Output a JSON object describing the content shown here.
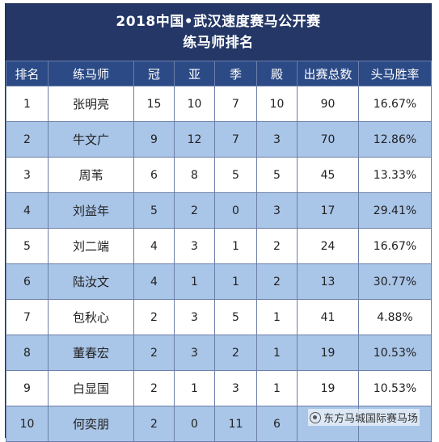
{
  "title": {
    "line1": "2018中国•武汉速度赛马公开赛",
    "line2": "练马师排名"
  },
  "columns": [
    "排名",
    "练马师",
    "冠",
    "亚",
    "季",
    "殿",
    "出赛总数",
    "头马胜率"
  ],
  "rows": [
    {
      "rank": "1",
      "trainer": "张明亮",
      "first": "15",
      "second": "10",
      "third": "7",
      "fourth": "10",
      "starts": "90",
      "win_rate": "16.67%"
    },
    {
      "rank": "2",
      "trainer": "牛文广",
      "first": "9",
      "second": "12",
      "third": "7",
      "fourth": "3",
      "starts": "70",
      "win_rate": "12.86%"
    },
    {
      "rank": "3",
      "trainer": "周苇",
      "first": "6",
      "second": "8",
      "third": "5",
      "fourth": "5",
      "starts": "45",
      "win_rate": "13.33%"
    },
    {
      "rank": "4",
      "trainer": "刘益年",
      "first": "5",
      "second": "2",
      "third": "0",
      "fourth": "3",
      "starts": "17",
      "win_rate": "29.41%"
    },
    {
      "rank": "5",
      "trainer": "刘二端",
      "first": "4",
      "second": "3",
      "third": "1",
      "fourth": "2",
      "starts": "24",
      "win_rate": "16.67%"
    },
    {
      "rank": "6",
      "trainer": "陆汝文",
      "first": "4",
      "second": "1",
      "third": "1",
      "fourth": "2",
      "starts": "13",
      "win_rate": "30.77%"
    },
    {
      "rank": "7",
      "trainer": "包秋心",
      "first": "2",
      "second": "3",
      "third": "5",
      "fourth": "1",
      "starts": "41",
      "win_rate": "4.88%"
    },
    {
      "rank": "8",
      "trainer": "董春宏",
      "first": "2",
      "second": "3",
      "third": "2",
      "fourth": "1",
      "starts": "19",
      "win_rate": "10.53%"
    },
    {
      "rank": "9",
      "trainer": "白显国",
      "first": "2",
      "second": "1",
      "third": "3",
      "fourth": "1",
      "starts": "19",
      "win_rate": "10.53%"
    },
    {
      "rank": "10",
      "trainer": "何奕朋",
      "first": "2",
      "second": "0",
      "third": "11",
      "fourth": "6",
      "starts": "",
      "win_rate": ""
    }
  ],
  "watermark": {
    "text": "东方马城国际赛马场",
    "icon": "wechat-logo-icon"
  }
}
